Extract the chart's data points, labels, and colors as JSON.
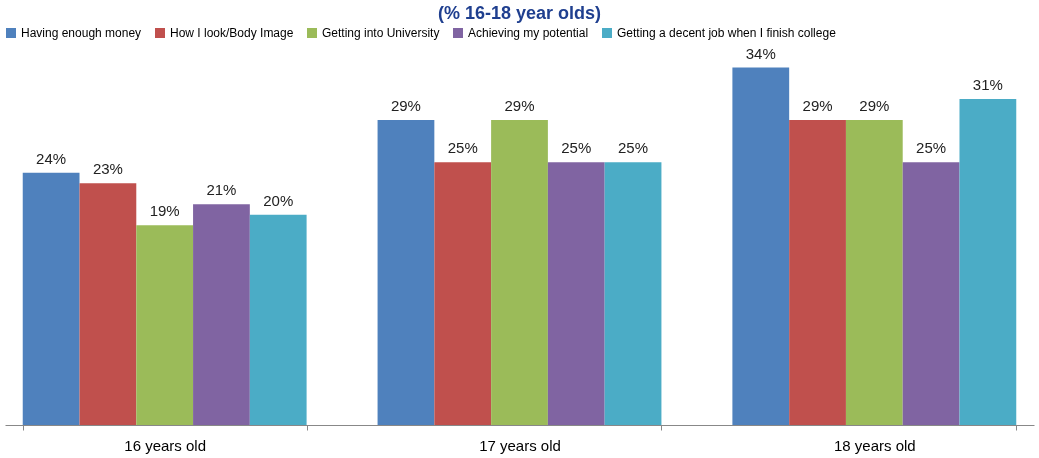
{
  "chart_data": {
    "type": "bar",
    "title": "(% 16-18 year olds)",
    "categories": [
      "16 years old",
      "17 years old",
      "18 years old"
    ],
    "series": [
      {
        "name": "Having enough money",
        "color": "#4f81bd",
        "values": [
          24,
          29,
          34
        ],
        "value_labels": [
          "24%",
          "29%",
          "34%"
        ]
      },
      {
        "name": "How I look/Body Image",
        "color": "#c0504d",
        "values": [
          23,
          25,
          29
        ],
        "value_labels": [
          "23%",
          "25%",
          "29%"
        ]
      },
      {
        "name": "Getting into University",
        "color": "#9bbb59",
        "values": [
          19,
          29,
          29
        ],
        "value_labels": [
          "19%",
          "29%",
          "29%"
        ]
      },
      {
        "name": "Achieving my potential",
        "color": "#8064a2",
        "values": [
          21,
          25,
          25
        ],
        "value_labels": [
          "21%",
          "25%",
          "25%"
        ]
      },
      {
        "name": "Getting a decent job when I finish college",
        "color": "#4bacc6",
        "values": [
          20,
          25,
          31
        ],
        "value_labels": [
          "20%",
          "25%",
          "31%"
        ]
      }
    ],
    "legend": "top",
    "grid": false
  }
}
